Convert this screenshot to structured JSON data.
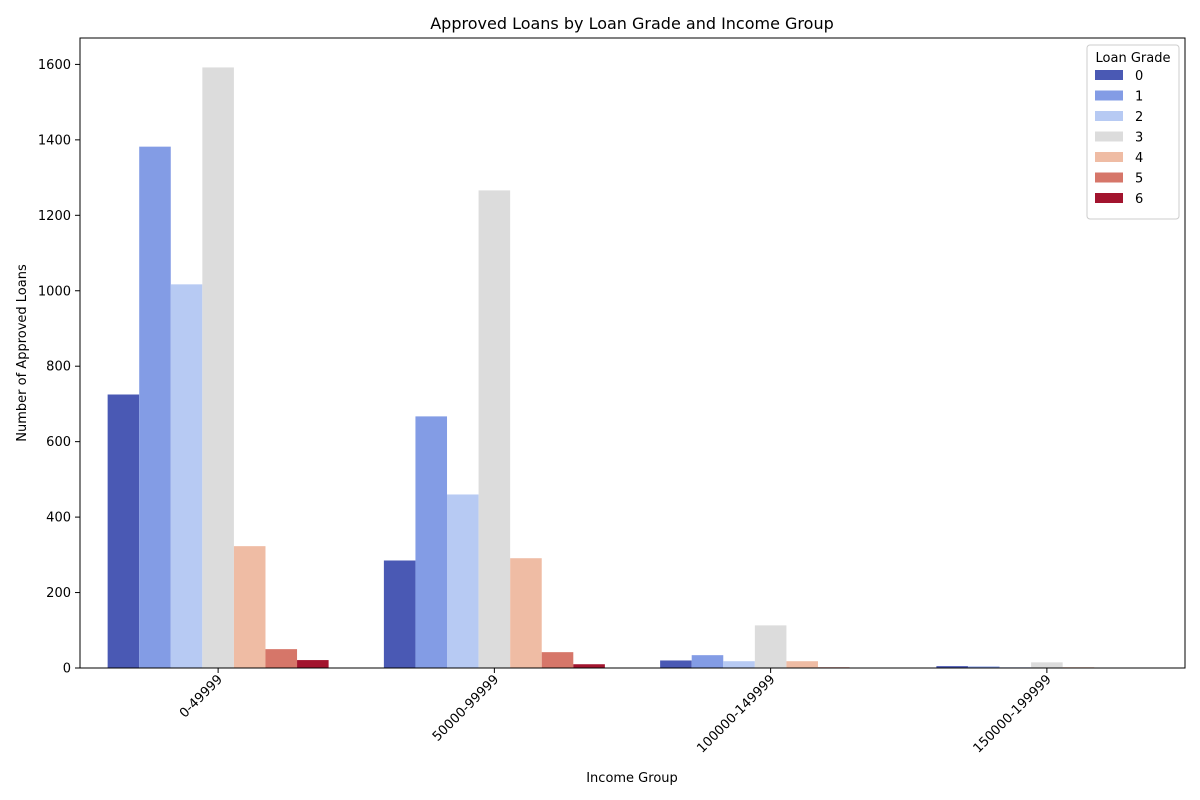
{
  "chart_data": {
    "type": "bar",
    "title": "Approved Loans by Loan Grade and Income Group",
    "xlabel": "Income Group",
    "ylabel": "Number of Approved Loans",
    "categories": [
      "0-49999",
      "50000-99999",
      "100000-149999",
      "150000-199999"
    ],
    "ylim": [
      0,
      1670
    ],
    "yticks": [
      0,
      200,
      400,
      600,
      800,
      1000,
      1200,
      1400,
      1600
    ],
    "legend": {
      "title": "Loan Grade",
      "placement": "top-right"
    },
    "grid": false,
    "series": [
      {
        "name": "0",
        "color": "#4a59b4",
        "values": [
          725,
          285,
          20,
          5
        ]
      },
      {
        "name": "1",
        "color": "#839ce5",
        "values": [
          1382,
          667,
          34,
          4
        ]
      },
      {
        "name": "2",
        "color": "#b7caf3",
        "values": [
          1017,
          460,
          18,
          2
        ]
      },
      {
        "name": "3",
        "color": "#dcdcdc",
        "values": [
          1592,
          1266,
          113,
          15
        ]
      },
      {
        "name": "4",
        "color": "#efbca4",
        "values": [
          323,
          291,
          18,
          2
        ]
      },
      {
        "name": "5",
        "color": "#d67669",
        "values": [
          50,
          42,
          2,
          0
        ]
      },
      {
        "name": "6",
        "color": "#a2142e",
        "values": [
          21,
          10,
          0,
          0
        ]
      }
    ]
  }
}
